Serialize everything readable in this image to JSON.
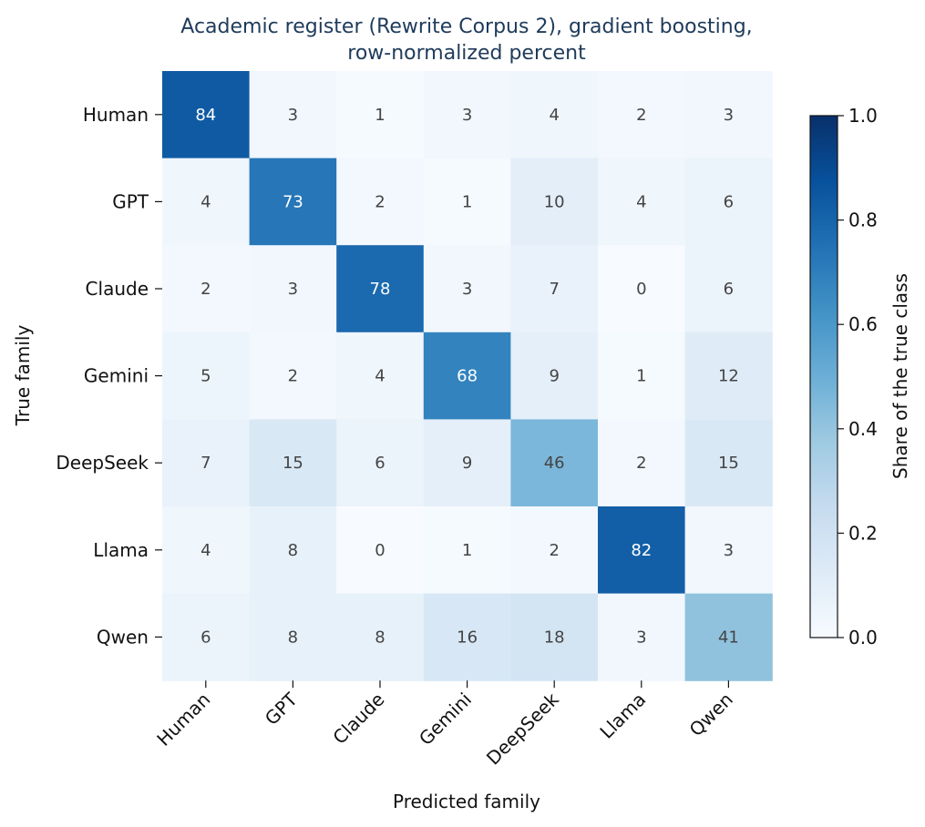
{
  "chart_data": {
    "type": "heatmap",
    "title_lines": [
      "Academic register (Rewrite Corpus 2), gradient boosting,",
      "row-normalized percent"
    ],
    "xlabel": "Predicted family",
    "ylabel": "True family",
    "rows": [
      "Human",
      "GPT",
      "Claude",
      "Gemini",
      "DeepSeek",
      "Llama",
      "Qwen"
    ],
    "columns": [
      "Human",
      "GPT",
      "Claude",
      "Gemini",
      "DeepSeek",
      "Llama",
      "Qwen"
    ],
    "values": [
      [
        84,
        3,
        1,
        3,
        4,
        2,
        3
      ],
      [
        4,
        73,
        2,
        1,
        10,
        4,
        6
      ],
      [
        2,
        3,
        78,
        3,
        7,
        0,
        6
      ],
      [
        5,
        2,
        4,
        68,
        9,
        1,
        12
      ],
      [
        7,
        15,
        6,
        9,
        46,
        2,
        15
      ],
      [
        4,
        8,
        0,
        1,
        2,
        82,
        3
      ],
      [
        6,
        8,
        8,
        16,
        18,
        3,
        41
      ]
    ],
    "colorbar": {
      "label": "Share of the true class",
      "range": [
        0.0,
        1.0
      ],
      "ticks": [
        "0.0",
        "0.2",
        "0.4",
        "0.6",
        "0.8",
        "1.0"
      ],
      "colormap": "Blues"
    }
  }
}
